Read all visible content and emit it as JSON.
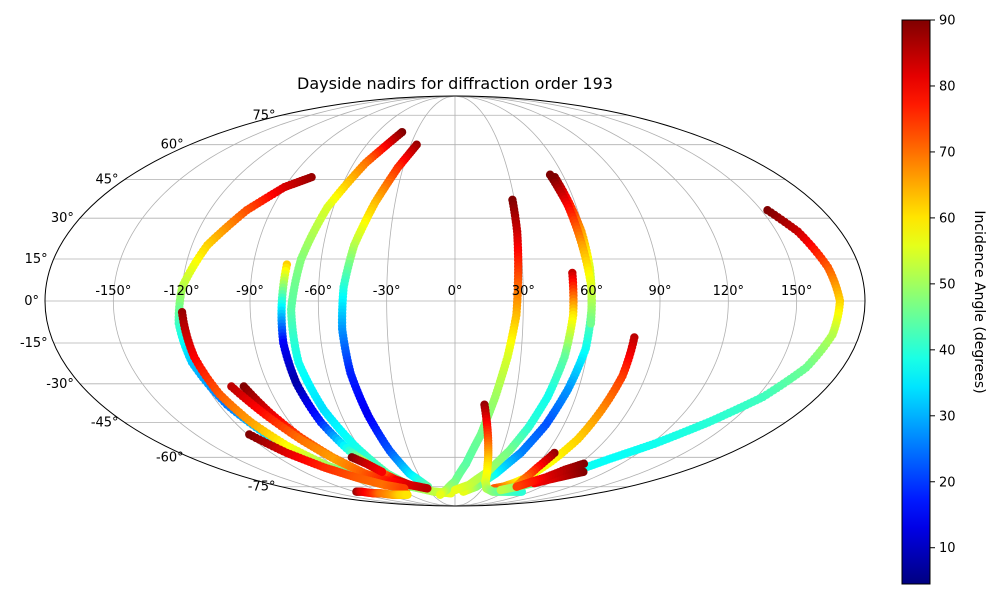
{
  "chart_data": {
    "type": "scatter",
    "projection": "mollweide",
    "title": "Dayside nadirs for diffraction order 193",
    "grid": true,
    "lon_ticks": [
      -150,
      -120,
      -90,
      -60,
      -30,
      0,
      30,
      60,
      90,
      120,
      150
    ],
    "lon_tick_labels": [
      "-150°",
      "-120°",
      "-90°",
      "-60°",
      "-30°",
      "0°",
      "30°",
      "60°",
      "90°",
      "120°",
      "150°"
    ],
    "lat_ticks": [
      75,
      60,
      45,
      30,
      15,
      0,
      -15,
      -30,
      -45,
      -60,
      -75
    ],
    "lat_tick_labels": [
      "75°",
      "60°",
      "45°",
      "30°",
      "15°",
      "0°",
      "-15°",
      "-30°",
      "-45°",
      "-60°",
      "-75°"
    ],
    "colorbar": {
      "label": "Incidence Angle (degrees)",
      "range": [
        4.5,
        90
      ],
      "ticks": [
        10,
        20,
        30,
        40,
        50,
        60,
        70,
        80,
        90
      ],
      "tick_labels": [
        "10",
        "20",
        "30",
        "40",
        "50",
        "60",
        "70",
        "80",
        "90"
      ],
      "colormap": "jet"
    },
    "series": [
      {
        "points": [
          [
            -79,
            46,
            88
          ],
          [
            -90,
            42,
            83
          ],
          [
            -102,
            33,
            73
          ],
          [
            -113,
            20,
            62
          ],
          [
            -120,
            5,
            52
          ],
          [
            -122,
            -8,
            42
          ],
          [
            -121,
            -22,
            32
          ],
          [
            -116,
            -38,
            25
          ],
          [
            -108,
            -52,
            35
          ],
          [
            -97,
            -63,
            48
          ],
          [
            -82,
            -71,
            58
          ],
          [
            -64,
            -75,
            65
          ],
          [
            -52,
            -76,
            68
          ]
        ]
      },
      {
        "points": [
          [
            -120,
            -4,
            88
          ],
          [
            -119,
            -20,
            80
          ],
          [
            -116,
            -34,
            72
          ],
          [
            -111,
            -45,
            66
          ],
          [
            -104,
            -55,
            58
          ],
          [
            -94,
            -64,
            50
          ],
          [
            -81,
            -71,
            42
          ],
          [
            -64,
            -75,
            36
          ],
          [
            -55,
            -75,
            34
          ]
        ]
      },
      {
        "points": [
          [
            -26,
            60,
            88
          ],
          [
            -33,
            50,
            76
          ],
          [
            -40,
            36,
            64
          ],
          [
            -46,
            20,
            52
          ],
          [
            -49,
            5,
            40
          ],
          [
            -50,
            -10,
            28
          ],
          [
            -49,
            -26,
            18
          ],
          [
            -46,
            -42,
            14
          ],
          [
            -42,
            -57,
            22
          ],
          [
            -37,
            -68,
            34
          ],
          [
            -28,
            -75,
            44
          ]
        ]
      },
      {
        "points": [
          [
            -41,
            66,
            90
          ],
          [
            -53,
            52,
            70
          ],
          [
            -63,
            34,
            55
          ],
          [
            -69,
            15,
            48
          ],
          [
            -72,
            -3,
            44
          ],
          [
            -72,
            -22,
            38
          ],
          [
            -68,
            -40,
            34
          ],
          [
            -62,
            -55,
            38
          ],
          [
            -55,
            -68,
            44
          ],
          [
            -45,
            -75,
            48
          ],
          [
            -25,
            -78,
            52
          ],
          [
            -5,
            -79,
            56
          ]
        ]
      },
      {
        "points": [
          [
            -75,
            13,
            62
          ],
          [
            -76,
            0,
            40
          ],
          [
            -77,
            -15,
            15
          ],
          [
            -76,
            -30,
            8
          ],
          [
            -73,
            -45,
            18
          ],
          [
            -68,
            -57,
            40
          ],
          [
            -61,
            -66,
            62
          ],
          [
            -53,
            -71,
            80
          ],
          [
            -45,
            -74,
            85
          ]
        ]
      },
      {
        "points": [
          [
            -102,
            -31,
            90
          ],
          [
            -97,
            -41,
            82
          ],
          [
            -91,
            -51,
            74
          ],
          [
            -83,
            -60,
            68
          ],
          [
            -73,
            -68,
            74
          ],
          [
            -65,
            -72,
            82
          ]
        ]
      },
      {
        "points": [
          [
            -108,
            -31,
            85
          ],
          [
            -100,
            -42,
            78
          ],
          [
            -92,
            -52,
            70
          ],
          [
            -83,
            -61,
            66
          ],
          [
            -73,
            -68,
            72
          ],
          [
            -60,
            -72,
            78
          ],
          [
            -45,
            -74,
            82
          ],
          [
            -30,
            -76,
            85
          ]
        ]
      },
      {
        "points": [
          [
            -119,
            -50,
            90
          ],
          [
            -110,
            -58,
            82
          ],
          [
            -98,
            -65,
            76
          ],
          [
            -85,
            -70,
            72
          ],
          [
            -70,
            -74,
            70
          ],
          [
            -55,
            -76,
            74
          ]
        ]
      },
      {
        "points": [
          [
            -70,
            -60,
            90
          ],
          [
            -64,
            -63,
            84
          ],
          [
            -58,
            -67,
            80
          ]
        ]
      },
      {
        "points": [
          [
            -118,
            -78,
            88
          ],
          [
            -112,
            -78,
            82
          ],
          [
            -104,
            -79,
            76
          ],
          [
            -94,
            -79,
            70
          ],
          [
            -84,
            -80,
            66
          ],
          [
            -74,
            -80,
            62
          ],
          [
            -64,
            -80,
            60
          ]
        ]
      },
      {
        "points": [
          [
            29,
            37,
            90
          ],
          [
            29,
            25,
            84
          ],
          [
            28,
            10,
            74
          ],
          [
            27,
            -5,
            64
          ],
          [
            24,
            -20,
            55
          ],
          [
            20,
            -35,
            50
          ],
          [
            15,
            -50,
            46
          ],
          [
            8,
            -63,
            44
          ],
          [
            0,
            -72,
            46
          ],
          [
            -10,
            -77,
            50
          ],
          [
            -20,
            -80,
            56
          ]
        ]
      },
      {
        "points": [
          [
            55,
            46,
            90
          ],
          [
            57,
            36,
            78
          ],
          [
            59,
            25,
            66
          ],
          [
            60,
            12,
            55
          ],
          [
            60,
            -3,
            46
          ],
          [
            59,
            -17,
            38
          ],
          [
            55,
            -32,
            28
          ],
          [
            50,
            -46,
            22
          ],
          [
            43,
            -58,
            26
          ],
          [
            33,
            -68,
            36
          ],
          [
            22,
            -75,
            48
          ],
          [
            10,
            -78,
            56
          ]
        ]
      },
      {
        "points": [
          [
            53,
            47,
            92
          ],
          [
            56,
            35,
            80
          ],
          [
            58,
            20,
            66
          ],
          [
            60,
            5,
            55
          ],
          [
            60,
            -8,
            46
          ]
        ]
      },
      {
        "points": [
          [
            52,
            10,
            84
          ],
          [
            52,
            -5,
            60
          ],
          [
            50,
            -20,
            45
          ],
          [
            46,
            -35,
            38
          ],
          [
            41,
            -47,
            40
          ],
          [
            35,
            -57,
            46
          ],
          [
            26,
            -67,
            50
          ],
          [
            14,
            -74,
            53
          ],
          [
            0,
            -77,
            56
          ]
        ]
      },
      {
        "points": [
          [
            80,
            -13,
            85
          ],
          [
            79,
            -27,
            75
          ],
          [
            76,
            -40,
            68
          ],
          [
            73,
            -52,
            62
          ],
          [
            68,
            -62,
            58
          ],
          [
            62,
            -70,
            56
          ],
          [
            56,
            -73,
            60
          ],
          [
            50,
            -75,
            66
          ],
          [
            42,
            -76,
            72
          ]
        ]
      },
      {
        "points": [
          [
            15,
            -38,
            88
          ],
          [
            18,
            -47,
            78
          ],
          [
            21,
            -56,
            68
          ],
          [
            24,
            -64,
            60
          ],
          [
            28,
            -72,
            56
          ],
          [
            34,
            -76,
            52
          ],
          [
            45,
            -78,
            48
          ],
          [
            58,
            -78,
            44
          ],
          [
            80,
            -78,
            40
          ]
        ]
      },
      {
        "points": [
          [
            65,
            -58,
            88
          ],
          [
            62,
            -65,
            78
          ],
          [
            61,
            -71,
            70
          ],
          [
            63,
            -75,
            66
          ]
        ]
      },
      {
        "points": [
          [
            153,
            33,
            90
          ],
          [
            160,
            25,
            84
          ],
          [
            166,
            12,
            72
          ],
          [
            169,
            0,
            62
          ],
          [
            168,
            -12,
            52
          ],
          [
            163,
            -24,
            46
          ],
          [
            153,
            -35,
            42
          ],
          [
            138,
            -45,
            40
          ],
          [
            122,
            -54,
            38
          ],
          [
            106,
            -61,
            37
          ],
          [
            94,
            -67,
            38
          ],
          [
            80,
            -72,
            42
          ],
          [
            65,
            -75,
            48
          ],
          [
            52,
            -77,
            52
          ]
        ]
      },
      {
        "points": [
          [
            102,
            -67,
            90
          ],
          [
            93,
            -69,
            86
          ],
          [
            84,
            -71,
            82
          ],
          [
            76,
            -73,
            80
          ]
        ]
      },
      {
        "points": [
          [
            93,
            -63,
            90
          ],
          [
            85,
            -66,
            86
          ],
          [
            78,
            -70,
            82
          ],
          [
            72,
            -72,
            78
          ],
          [
            64,
            -75,
            74
          ]
        ]
      }
    ]
  }
}
